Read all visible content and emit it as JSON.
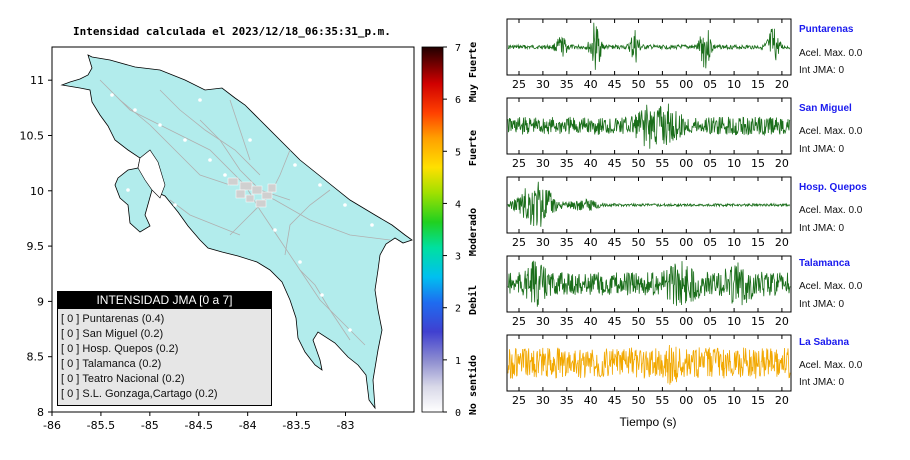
{
  "header": {
    "title": "Intensidad calculada el 2023/12/18_06:35:31_p.m."
  },
  "colors": {
    "land": "#b2ecec",
    "map_border": "#000000",
    "trace_green": "#1a6e1a",
    "trace_orange": "#f2a800",
    "station_name": "#1a1aee"
  },
  "legend": {
    "title": "INTENSIDAD JMA [0 a 7]",
    "items": [
      {
        "bracket": "[ 0 ]",
        "label": "Puntarenas (0.4)"
      },
      {
        "bracket": "[ 0 ]",
        "label": "San Miguel (0.2)"
      },
      {
        "bracket": "[ 0 ]",
        "label": "Hosp. Quepos (0.2)"
      },
      {
        "bracket": "[ 0 ]",
        "label": "Talamanca (0.2)"
      },
      {
        "bracket": "[ 0 ]",
        "label": "Teatro Nacional (0.2)"
      },
      {
        "bracket": "[ 0 ]",
        "label": "S.L. Gonzaga,Cartago (0.2)"
      }
    ]
  },
  "colorbar": {
    "ticks": [
      "0",
      "1",
      "2",
      "3",
      "4",
      "5",
      "6",
      "7"
    ],
    "labels": [
      "No sentido",
      "Debil",
      "Moderado",
      "Fuerte",
      "Muy Fuerte"
    ]
  },
  "waveforms": {
    "x_ticks": [
      "25",
      "30",
      "35",
      "40",
      "45",
      "50",
      "55",
      "00",
      "05",
      "10",
      "15",
      "20"
    ],
    "xlabel": "Tiempo (s)",
    "stations": [
      {
        "name": "Puntarenas",
        "accel_label": "Acel. Max. 0.0",
        "int_label": "Int JMA: 0",
        "color": "green"
      },
      {
        "name": "San Miguel",
        "accel_label": "Acel. Max. 0.0",
        "int_label": "Int JMA: 0",
        "color": "green"
      },
      {
        "name": "Hosp. Quepos",
        "accel_label": "Acel. Max. 0.0",
        "int_label": "Int JMA: 0",
        "color": "green"
      },
      {
        "name": "Talamanca",
        "accel_label": "Acel. Max. 0.0",
        "int_label": "Int JMA: 0",
        "color": "green"
      },
      {
        "name": "La Sabana",
        "accel_label": "Acel. Max. 0.0",
        "int_label": "Int JMA: 0",
        "color": "orange"
      }
    ]
  },
  "chart_data": [
    {
      "type": "map",
      "title": "Intensidad calculada el 2023/12/18_06:35:31_p.m.",
      "x_ticks": [
        "-86",
        "-85.5",
        "-85",
        "-84.5",
        "-84",
        "-83.5",
        "-83"
      ],
      "y_ticks": [
        "11",
        "10.5",
        "10",
        "9.5",
        "9",
        "8.5",
        "8"
      ],
      "xlim": [
        -86,
        -82.3
      ],
      "ylim": [
        8,
        11.3
      ],
      "legend_placement": "bottom-left"
    },
    {
      "type": "colorbar",
      "range": [
        0,
        7
      ],
      "ticks": [
        0,
        1,
        2,
        3,
        4,
        5,
        6,
        7
      ],
      "labels": [
        "No sentido",
        "Debil",
        "Moderado",
        "Fuerte",
        "Muy Fuerte"
      ]
    },
    {
      "type": "line",
      "xlabel": "Tiempo (s)",
      "x_ticks": [
        "25",
        "30",
        "35",
        "40",
        "45",
        "50",
        "55",
        "00",
        "05",
        "10",
        "15",
        "20"
      ],
      "series": [
        {
          "name": "Puntarenas"
        },
        {
          "name": "San Miguel"
        },
        {
          "name": "Hosp. Quepos"
        },
        {
          "name": "Talamanca"
        },
        {
          "name": "La Sabana"
        }
      ]
    }
  ]
}
